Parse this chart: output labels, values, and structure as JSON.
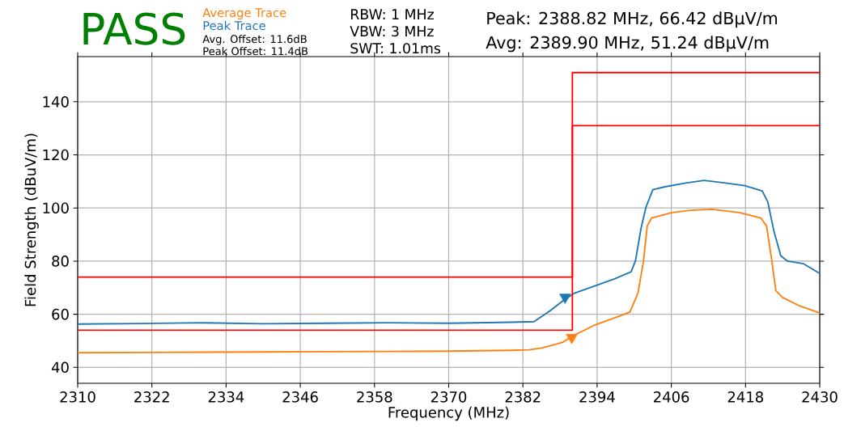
{
  "chart_data": {
    "type": "line",
    "title": "PASS",
    "xlabel": "Frequency (MHz)",
    "ylabel": "Field Strength (dBuV/m)",
    "annotations": [
      "Avg. Offset: 11.6dB",
      "Peak Offset: 11.4dB",
      "RBW: 1 MHz",
      "VBW: 3 MHz",
      "SWT: 1.01ms",
      "Peak: 2388.82 MHz, 66.42 dBµV/m",
      "Avg: 2389.90 MHz, 51.24 dBµV/m"
    ],
    "xlim": [
      2310,
      2430
    ],
    "ylim": [
      34,
      157
    ],
    "xticks": [
      2310,
      2322,
      2334,
      2346,
      2358,
      2370,
      2382,
      2394,
      2406,
      2418,
      2430
    ],
    "yticks": [
      40,
      60,
      80,
      100,
      120,
      140
    ],
    "grid": true,
    "legend": "top left",
    "series": [
      {
        "name": "Average Trace",
        "color": "#ff7f0e",
        "x": [
          2310,
          2320,
          2330,
          2340,
          2350,
          2360,
          2370,
          2380,
          2383,
          2385,
          2386.4,
          2388.4,
          2389.9,
          2393.4,
          2396.9,
          2399.3,
          2400.6,
          2401.5,
          2402.1,
          2402.8,
          2406.1,
          2409.1,
          2412.6,
          2417.0,
          2420.5,
          2421.4,
          2422.2,
          2422.9,
          2424.0,
          2426.6,
          2429.6,
          2430
        ],
        "values": [
          45.5,
          45.6,
          45.7,
          45.8,
          45.9,
          46.0,
          46.1,
          46.4,
          46.6,
          47.3,
          48.1,
          49.4,
          51.6,
          55.7,
          58.7,
          60.8,
          67.9,
          80.0,
          93.2,
          96.2,
          98.3,
          99.1,
          99.5,
          98.3,
          96.2,
          93.2,
          81.0,
          68.9,
          66.3,
          63.3,
          60.8,
          60.5
        ]
      },
      {
        "name": "Peak Trace",
        "color": "#1f77b4",
        "x": [
          2310,
          2320,
          2330,
          2340,
          2350,
          2360,
          2370,
          2380,
          2383.8,
          2386.4,
          2388.6,
          2390.4,
          2393.9,
          2396.9,
          2399.5,
          2400.2,
          2401.1,
          2401.9,
          2403.0,
          2404.8,
          2408.3,
          2411.3,
          2414.8,
          2417.9,
          2420.7,
          2421.6,
          2422.6,
          2423.7,
          2424.8,
          2427.4,
          2429.9,
          2430
        ],
        "values": [
          56.3,
          56.5,
          56.8,
          56.4,
          56.6,
          56.8,
          56.6,
          57.0,
          57.2,
          61.3,
          65.3,
          68.0,
          70.9,
          73.4,
          76.0,
          80.1,
          92.3,
          100.3,
          106.9,
          107.9,
          109.4,
          110.4,
          109.4,
          108.4,
          106.4,
          102.3,
          91.2,
          82.0,
          80.0,
          79.0,
          75.5,
          75.5
        ]
      },
      {
        "type": "line",
        "color": "#ff0000",
        "x": [
          2310,
          2390,
          2390,
          2430
        ],
        "values": [
          54,
          54,
          131,
          131
        ]
      },
      {
        "type": "line",
        "color": "#ff0000",
        "x": [
          2310,
          2390,
          2390,
          2430
        ],
        "values": [
          74,
          74,
          151,
          151
        ]
      },
      {
        "type": "scatter",
        "marker": "triangle",
        "color": "#1f77b4",
        "x": [
          2388.82
        ],
        "values": [
          66.42
        ]
      },
      {
        "type": "scatter",
        "marker": "triangle",
        "color": "#ff7f0e",
        "x": [
          2389.9
        ],
        "values": [
          51.24
        ]
      }
    ]
  }
}
